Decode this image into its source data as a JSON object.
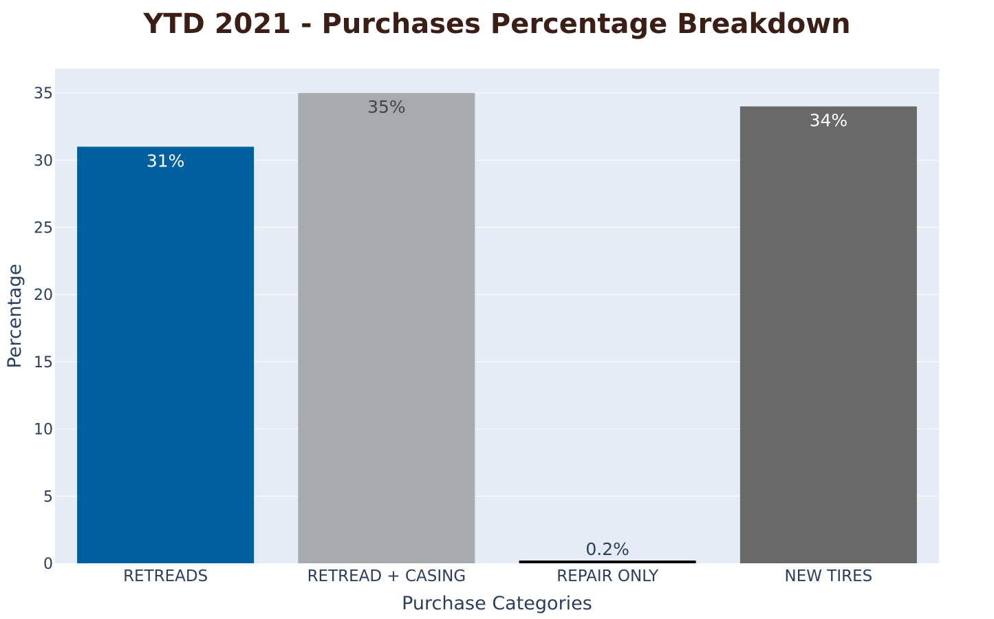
{
  "chart_data": {
    "type": "bar",
    "title": "YTD 2021 - Purchases Percentage Breakdown",
    "xlabel": "Purchase Categories",
    "ylabel": "Percentage",
    "ylim": [
      0,
      36.8
    ],
    "yticks": [
      0,
      5,
      10,
      15,
      20,
      25,
      30,
      35
    ],
    "grid": true,
    "categories": [
      "RETREADS",
      "RETREAD + CASING",
      "REPAIR ONLY",
      "NEW TIRES"
    ],
    "values": [
      31,
      35,
      0.2,
      34
    ],
    "data_labels": [
      "31%",
      "35%",
      "0.2%",
      "34%"
    ],
    "colors": [
      "#005f9e",
      "#a7abae",
      "#000000",
      "#696969"
    ],
    "label_colors": [
      "#ffffff",
      "#444444",
      "#2a3f5f",
      "#ffffff"
    ],
    "label_position": [
      "inside",
      "inside",
      "outside",
      "inside"
    ],
    "plot_background": "#e5ecf6",
    "axis_text_color": "#2a3f5f",
    "title_color": "#3b1f17"
  }
}
